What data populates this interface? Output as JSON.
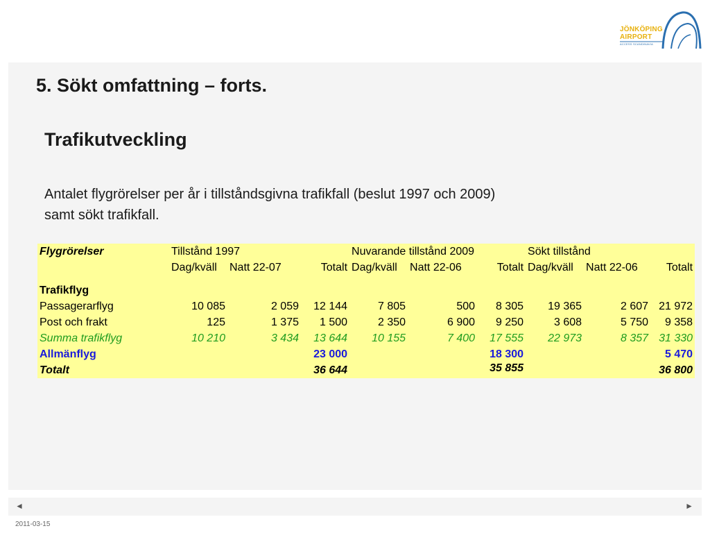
{
  "logo": {
    "line1": "JÖNKÖPING",
    "line2": "AIRPORT",
    "tagline": "ACCESS SCANDINAVIA",
    "color_text": "#e8b10e",
    "color_arc": "#2a6fb0"
  },
  "slide": {
    "title": "5. Sökt omfattning – forts.",
    "subtitle": "Trafikutveckling",
    "body_line1": "Antalet flygrörelser per år i tillståndsgivna trafikfall (beslut 1997 och 2009)",
    "body_line2": "samt sökt trafikfall."
  },
  "table": {
    "row_label_header": "Flygrörelser",
    "groups": [
      "Tillstånd 1997",
      "Nuvarande tillstånd 2009",
      "Sökt tillstånd"
    ],
    "sub_headers": [
      "Dag/kväll",
      "Natt 22-07",
      "Totalt",
      "Dag/kväll",
      "Natt 22-06",
      "Totalt",
      "Dag/kväll",
      "Natt 22-06",
      "Totalt"
    ],
    "section_label": "Trafikflyg",
    "rows": [
      {
        "label": "Passagerarflyg",
        "values": [
          "10 085",
          "2 059",
          "12 144",
          "7 805",
          "500",
          "8 305",
          "19 365",
          "2 607",
          "21 972"
        ]
      },
      {
        "label": "Post och frakt",
        "values": [
          "125",
          "1 375",
          "1 500",
          "2 350",
          "6 900",
          "9 250",
          "3 608",
          "5 750",
          "9 358"
        ]
      }
    ],
    "sum_row": {
      "label": "Summa trafikflyg",
      "values": [
        "10 210",
        "3 434",
        "13 644",
        "10 155",
        "7 400",
        "17 555",
        "22 973",
        "8 357",
        "31 330"
      ]
    },
    "general_row": {
      "label": "Allmänflyg",
      "totals": [
        "23 000",
        "18 300",
        "5 470"
      ]
    },
    "total_row": {
      "label": "Totalt",
      "totals": [
        "36 644",
        "35 855",
        "36 800"
      ]
    },
    "colors": {
      "background": "#ffff99",
      "sum": "#1f9c1f",
      "general": "#1a1adb"
    }
  },
  "nav": {
    "prev": "◄",
    "next": "►"
  },
  "footer": {
    "date": "2011-03-15"
  }
}
